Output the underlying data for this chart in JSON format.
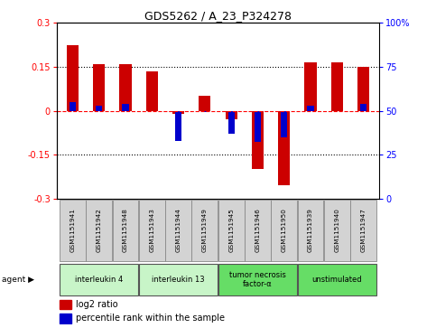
{
  "title": "GDS5262 / A_23_P324278",
  "samples": [
    "GSM1151941",
    "GSM1151942",
    "GSM1151948",
    "GSM1151943",
    "GSM1151944",
    "GSM1151949",
    "GSM1151945",
    "GSM1151946",
    "GSM1151950",
    "GSM1151939",
    "GSM1151940",
    "GSM1151947"
  ],
  "log2_ratio": [
    0.225,
    0.16,
    0.16,
    0.135,
    -0.01,
    0.05,
    -0.03,
    -0.2,
    -0.255,
    0.165,
    0.165,
    0.15
  ],
  "percentile_rank": [
    55,
    53,
    54,
    50,
    33,
    49,
    37,
    32,
    35,
    53,
    50,
    54
  ],
  "groups": [
    {
      "label": "interleukin 4",
      "start": 0,
      "end": 3,
      "color": "#c8f5c8"
    },
    {
      "label": "interleukin 13",
      "start": 3,
      "end": 6,
      "color": "#c8f5c8"
    },
    {
      "label": "tumor necrosis\nfactor-α",
      "start": 6,
      "end": 9,
      "color": "#66dd66"
    },
    {
      "label": "unstimulated",
      "start": 9,
      "end": 12,
      "color": "#66dd66"
    }
  ],
  "bar_color_red": "#cc0000",
  "bar_color_blue": "#0000cc",
  "bar_width": 0.45,
  "ylim": [
    -0.3,
    0.3
  ],
  "y2lim": [
    0,
    100
  ],
  "yticks": [
    -0.3,
    -0.15,
    0.0,
    0.15,
    0.3
  ],
  "y2ticks": [
    0,
    25,
    50,
    75,
    100
  ],
  "dotted_lines": [
    -0.15,
    0.15
  ],
  "background_color": "#ffffff",
  "plot_bg_color": "#ffffff"
}
